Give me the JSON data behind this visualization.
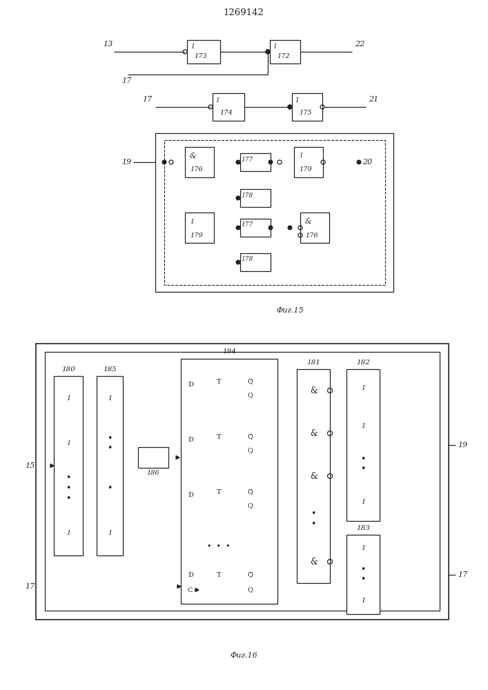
{
  "title": "1269142",
  "fig1_label": "Фиг.15",
  "fig2_label": "Фиг.16",
  "bg_color": "#ffffff",
  "lc": "#222222"
}
